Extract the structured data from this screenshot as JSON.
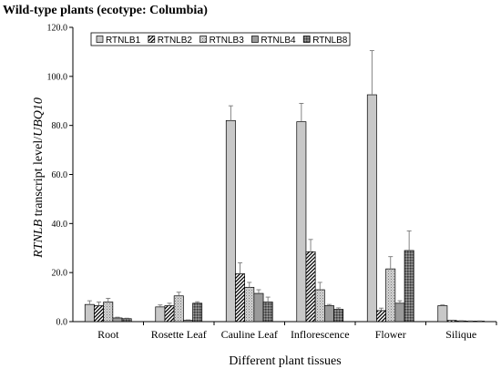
{
  "chart_data": {
    "type": "bar",
    "title": "Wild-type plants (ecotype: Columbia)",
    "xlabel": "Different plant tissues",
    "ylabel_italic_1": "RTNLB",
    "ylabel_plain": " transcript level/",
    "ylabel_italic_2": "UBQ10",
    "ylim": [
      0,
      120
    ],
    "yticks": [
      "0.0",
      "20.0",
      "40.0",
      "60.0",
      "80.0",
      "100.0",
      "120.0"
    ],
    "grid": false,
    "legend_position": "top",
    "error_bars": true,
    "categories": [
      "Root",
      "Rosette  Leaf",
      "Cauline Leaf",
      "Inflorescence",
      "Flower",
      "Silique"
    ],
    "series": [
      {
        "name": "RTNLB1",
        "pattern": "light-gray",
        "values": [
          7.0,
          6.0,
          82.0,
          81.5,
          92.5,
          6.5
        ],
        "errors": [
          1.5,
          0.8,
          6.0,
          7.5,
          18.0,
          0.3
        ]
      },
      {
        "name": "RTNLB2",
        "pattern": "diagonal-hatch",
        "values": [
          6.5,
          6.5,
          19.5,
          28.5,
          4.5,
          0.5
        ],
        "errors": [
          1.5,
          1.0,
          4.5,
          5.0,
          1.0,
          0.1
        ]
      },
      {
        "name": "RTNLB3",
        "pattern": "fine-stipple",
        "values": [
          8.0,
          10.5,
          14.0,
          13.0,
          21.5,
          0.3
        ],
        "errors": [
          1.5,
          1.5,
          2.0,
          3.0,
          5.0,
          0.1
        ]
      },
      {
        "name": "RTNLB4",
        "pattern": "medium-gray",
        "values": [
          1.5,
          0.5,
          11.5,
          6.5,
          7.5,
          0.2
        ],
        "errors": [
          0.3,
          0.2,
          1.5,
          0.5,
          1.0,
          0.1
        ]
      },
      {
        "name": "RTNLB8",
        "pattern": "dark-checker",
        "values": [
          1.2,
          7.5,
          8.0,
          5.0,
          29.0,
          0.2
        ],
        "errors": [
          0.2,
          0.6,
          2.0,
          0.6,
          8.0,
          0.1
        ]
      }
    ]
  }
}
